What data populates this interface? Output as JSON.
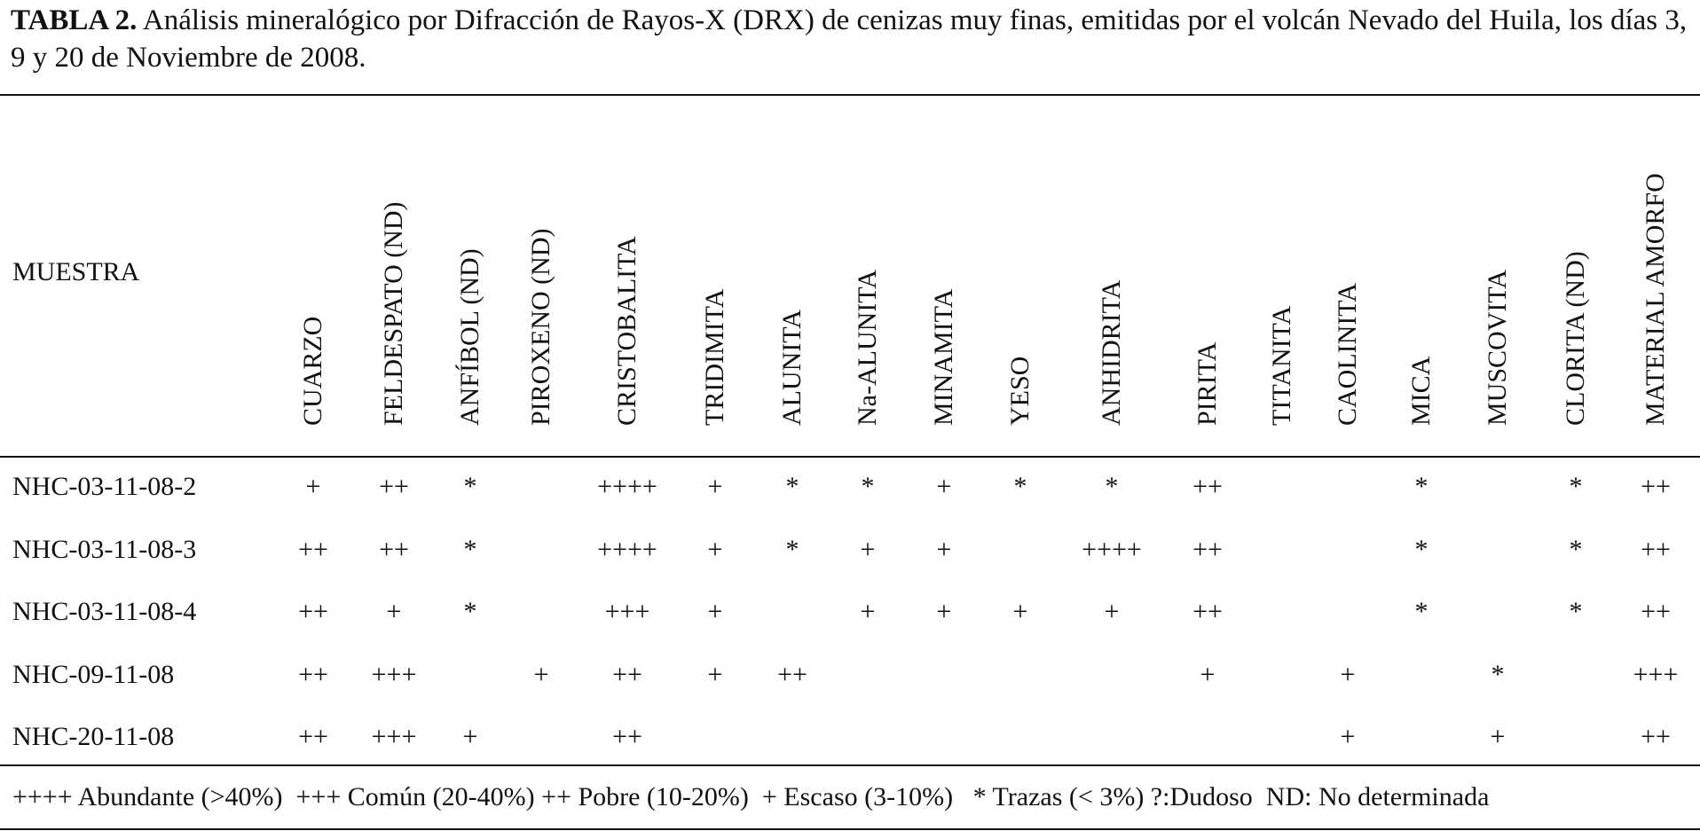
{
  "caption": {
    "label": "TABLA 2.",
    "text": " Análisis mineralógico por Difracción de Rayos-X (DRX) de cenizas muy finas, emitidas por el volcán Nevado del Huila, los días 3, 9 y 20 de Noviembre de 2008."
  },
  "table": {
    "row_header": "MUESTRA",
    "columns": [
      "CUARZO",
      "FELDESPATO (ND)",
      "ANFÍBOL (ND)",
      "PIROXENO (ND)",
      "CRISTOBALITA",
      "TRIDIMITA",
      "ALUNITA",
      "Na-ALUNITA",
      "MINAMITA",
      "YESO",
      "ANHIDRITA",
      "PIRITA",
      "TITANITA",
      "CAOLINITA",
      "MICA",
      "MUSCOVITA",
      "CLORITA (ND)",
      "MATERIAL AMORFO"
    ],
    "rows": [
      {
        "sample": "NHC-03-11-08-2",
        "values": [
          "+",
          "++",
          "*",
          "",
          "++++",
          "+",
          "*",
          "*",
          "+",
          "*",
          "*",
          "++",
          "",
          "",
          "*",
          "",
          "*",
          "++"
        ]
      },
      {
        "sample": "NHC-03-11-08-3",
        "values": [
          "++",
          "++",
          "*",
          "",
          "++++",
          "+",
          "*",
          "+",
          "+",
          "",
          "++++",
          "++",
          "",
          "",
          "*",
          "",
          "*",
          "++"
        ]
      },
      {
        "sample": "NHC-03-11-08-4",
        "values": [
          "++",
          "+",
          "*",
          "",
          "+++",
          "+",
          "",
          "+",
          "+",
          "+",
          "+",
          "++",
          "",
          "",
          "*",
          "",
          "*",
          "++"
        ]
      },
      {
        "sample": "NHC-09-11-08",
        "values": [
          "++",
          "+++",
          "",
          "+",
          "++",
          "+",
          "++",
          "",
          "",
          "",
          "",
          "+",
          "",
          "+",
          "",
          "*",
          "",
          "+++"
        ]
      },
      {
        "sample": "NHC-20-11-08",
        "values": [
          "++",
          "+++",
          "+",
          "",
          "++",
          "",
          "",
          "",
          "",
          "",
          "",
          "",
          "",
          "+",
          "",
          "+",
          "",
          "++"
        ]
      }
    ]
  },
  "legend": "++++ Abundante (>40%)  +++ Común (20-40%) ++ Pobre (10-20%)  + Escaso (3-10%)   * Trazas (< 3%) ?:Dudoso  ND: No determinada"
}
